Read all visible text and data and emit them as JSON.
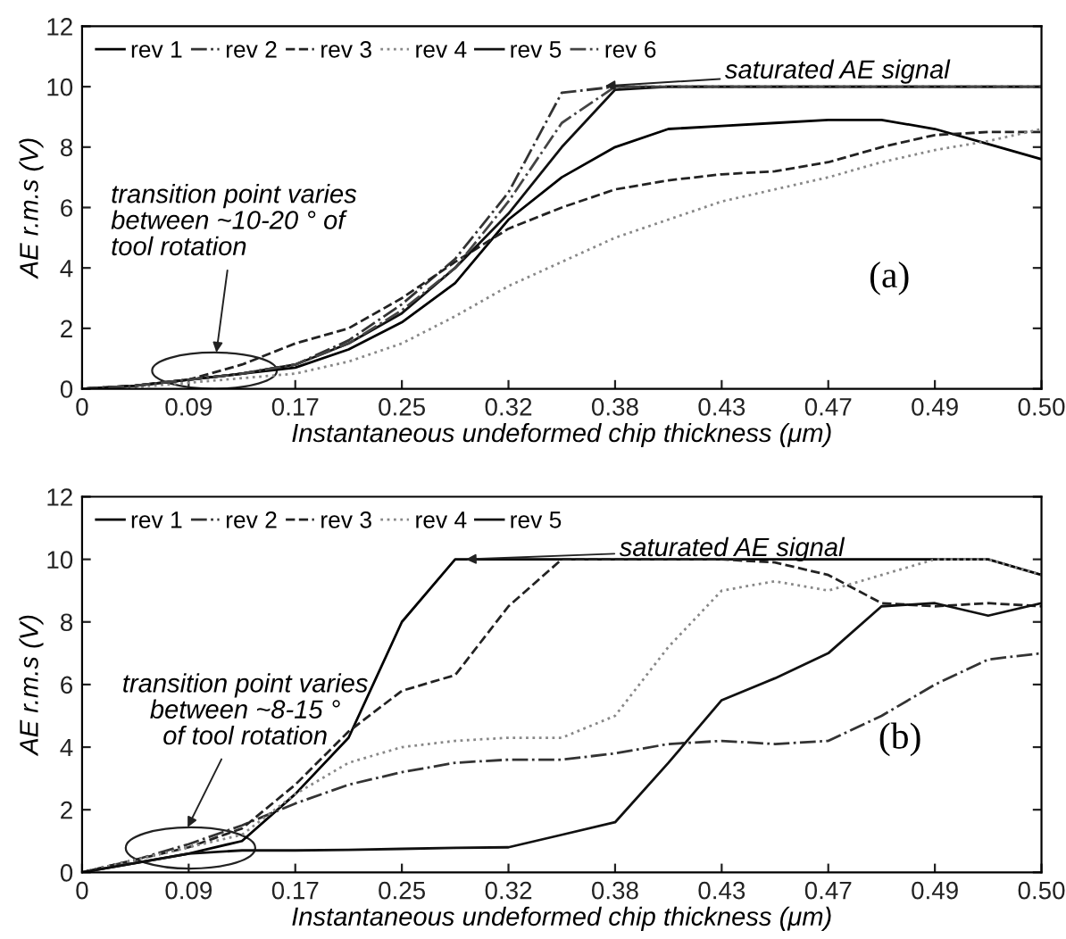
{
  "chart_data": [
    {
      "type": "line",
      "xlabel": "Instantaneous undeformed chip thickness (μm)",
      "ylabel": "AE r.m.s (V)",
      "ylim": [
        0,
        12
      ],
      "categories": [
        "0",
        null,
        "0.09",
        null,
        "0.17",
        null,
        "0.25",
        null,
        "0.32",
        null,
        "0.38",
        null,
        "0.43",
        null,
        "0.47",
        null,
        "0.49",
        null,
        "0.50"
      ],
      "yticks": [
        0,
        2,
        4,
        6,
        8,
        10,
        12
      ],
      "legend": "top left",
      "series": [
        {
          "name": "rev 1",
          "color": "#000000",
          "line_style": "solid",
          "values": [
            0,
            0.1,
            0.3,
            0.5,
            0.7,
            1.3,
            2.2,
            3.5,
            5.6,
            7.0,
            8.0,
            8.6,
            8.7,
            8.8,
            8.9,
            8.9,
            8.6,
            8.1,
            7.6
          ]
        },
        {
          "name": "rev 2",
          "color": "#333333",
          "line_style": "dashdot",
          "values": [
            0,
            0.1,
            0.3,
            0.5,
            0.8,
            1.6,
            2.8,
            4.3,
            6.5,
            9.8,
            10,
            10,
            10,
            10,
            10,
            10,
            10,
            10,
            10
          ]
        },
        {
          "name": "rev 3",
          "color": "#222222",
          "line_style": "dashed",
          "values": [
            0,
            0.1,
            0.3,
            0.8,
            1.5,
            2.0,
            3.0,
            4.2,
            5.3,
            6.0,
            6.6,
            6.9,
            7.1,
            7.2,
            7.5,
            8.0,
            8.4,
            8.5,
            8.5
          ]
        },
        {
          "name": "rev 4",
          "color": "#888888",
          "line_style": "dotted",
          "values": [
            0,
            0.05,
            0.2,
            0.35,
            0.5,
            0.9,
            1.5,
            2.4,
            3.4,
            4.2,
            5.0,
            5.6,
            6.2,
            6.6,
            7.0,
            7.5,
            7.9,
            8.2,
            8.6
          ]
        },
        {
          "name": "rev 5",
          "color": "#111111",
          "line_style": "solid",
          "values": [
            0,
            0.1,
            0.3,
            0.5,
            0.8,
            1.5,
            2.5,
            4.0,
            5.8,
            8.0,
            9.9,
            10,
            10,
            10,
            10,
            10,
            10,
            10,
            10
          ]
        },
        {
          "name": "rev 6",
          "color": "#444444",
          "line_style": "dashdot",
          "values": [
            0,
            0.1,
            0.3,
            0.5,
            0.8,
            1.5,
            2.6,
            4.0,
            6.2,
            8.8,
            10,
            10,
            10,
            10,
            10,
            10,
            10,
            10,
            10
          ]
        }
      ],
      "annotations": [
        "saturated AE signal",
        "transition point varies\nbetween ~10-20 ° of\ntool rotation",
        "(a)"
      ]
    },
    {
      "type": "line",
      "xlabel": "Instantaneous undeformed chip thickness (μm)",
      "ylabel": "AE r.m.s (V)",
      "ylim": [
        0,
        12
      ],
      "categories": [
        "0",
        null,
        "0.09",
        null,
        "0.17",
        null,
        "0.25",
        null,
        "0.32",
        null,
        "0.38",
        null,
        "0.43",
        null,
        "0.47",
        null,
        "0.49",
        null,
        "0.50"
      ],
      "yticks": [
        0,
        2,
        4,
        6,
        8,
        10,
        12
      ],
      "legend": "top left",
      "series": [
        {
          "name": "rev 1",
          "color": "#000000",
          "line_style": "solid",
          "values": [
            0,
            0.3,
            0.6,
            1.0,
            2.5,
            4.3,
            8.0,
            10,
            10,
            10,
            10,
            10,
            10,
            10,
            10,
            10,
            10,
            10,
            9.5
          ]
        },
        {
          "name": "rev 2",
          "color": "#333333",
          "line_style": "dashdot",
          "values": [
            0,
            0.4,
            0.9,
            1.5,
            2.2,
            2.8,
            3.2,
            3.5,
            3.6,
            3.6,
            3.8,
            4.1,
            4.2,
            4.1,
            4.2,
            5.0,
            6.0,
            6.8,
            7.0
          ]
        },
        {
          "name": "rev 3",
          "color": "#222222",
          "line_style": "dashed",
          "values": [
            0,
            0.4,
            0.8,
            1.4,
            2.8,
            4.5,
            5.8,
            6.3,
            8.5,
            10,
            10,
            10,
            10,
            9.9,
            9.5,
            8.6,
            8.5,
            8.6,
            8.5
          ]
        },
        {
          "name": "rev 4",
          "color": "#888888",
          "line_style": "dotted",
          "values": [
            0,
            0.4,
            0.8,
            1.2,
            2.5,
            3.5,
            4.0,
            4.2,
            4.3,
            4.3,
            5.0,
            7.2,
            9.0,
            9.3,
            9.0,
            9.5,
            10,
            10,
            9.5
          ]
        },
        {
          "name": "rev 5",
          "color": "#111111",
          "line_style": "solid",
          "values": [
            0,
            0.3,
            0.6,
            0.7,
            0.7,
            0.72,
            0.75,
            0.78,
            0.8,
            1.2,
            1.6,
            3.5,
            5.5,
            6.2,
            7.0,
            8.5,
            8.6,
            8.2,
            8.6
          ]
        }
      ],
      "annotations": [
        {
          "text": "saturated AE signal",
          "y": 10
        },
        "transition point varies\nbetween ~8-15 °\nof tool rotation",
        "(b)"
      ]
    }
  ]
}
